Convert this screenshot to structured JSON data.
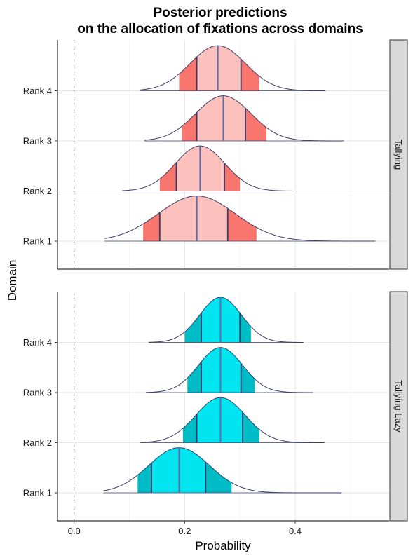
{
  "chart_data": {
    "type": "ridgeline",
    "title_lines": [
      "Posterior predictions",
      "on the allocation of fixations across domains"
    ],
    "xlabel": "Probability",
    "ylabel": "Domain",
    "xlim": [
      -0.03,
      0.57
    ],
    "x_ticks": [
      0.0,
      0.2,
      0.4
    ],
    "x_tick_labels": [
      "0.0",
      "0.2",
      "0.4"
    ],
    "reference_line": 0.0,
    "categories": [
      "Rank 1",
      "Rank 2",
      "Rank 3",
      "Rank 4"
    ],
    "panels": [
      {
        "name": "Tallying",
        "fill_inner": "#fcc1bc",
        "fill_outer": "#f8766d",
        "series": [
          {
            "name": "Rank 1",
            "median": 0.222,
            "sd": 0.07,
            "scale": 0.9,
            "range": [
              0.055,
              0.545
            ],
            "inner": [
              0.155,
              0.278
            ],
            "outer": [
              0.125,
              0.33
            ]
          },
          {
            "name": "Rank 2",
            "median": 0.228,
            "sd": 0.045,
            "scale": 0.9,
            "range": [
              0.087,
              0.398
            ],
            "inner": [
              0.185,
              0.272
            ],
            "outer": [
              0.155,
              0.3
            ]
          },
          {
            "name": "Rank 3",
            "median": 0.27,
            "sd": 0.05,
            "scale": 0.9,
            "range": [
              0.127,
              0.488
            ],
            "inner": [
              0.222,
              0.31
            ],
            "outer": [
              0.195,
              0.348
            ]
          },
          {
            "name": "Rank 4",
            "median": 0.26,
            "sd": 0.05,
            "scale": 0.9,
            "range": [
              0.12,
              0.455
            ],
            "inner": [
              0.222,
              0.302
            ],
            "outer": [
              0.19,
              0.335
            ]
          }
        ]
      },
      {
        "name": "Tallying Lazy",
        "fill_inner": "#00e5ef",
        "fill_outer": "#00bcc6",
        "series": [
          {
            "name": "Rank 1",
            "median": 0.19,
            "sd": 0.055,
            "scale": 0.9,
            "range": [
              0.053,
              0.484
            ],
            "inner": [
              0.14,
              0.238
            ],
            "outer": [
              0.115,
              0.285
            ]
          },
          {
            "name": "Rank 2",
            "median": 0.265,
            "sd": 0.045,
            "scale": 0.9,
            "range": [
              0.12,
              0.453
            ],
            "inner": [
              0.222,
              0.305
            ],
            "outer": [
              0.197,
              0.335
            ]
          },
          {
            "name": "Rank 3",
            "median": 0.265,
            "sd": 0.04,
            "scale": 0.9,
            "range": [
              0.13,
              0.432
            ],
            "inner": [
              0.23,
              0.302
            ],
            "outer": [
              0.205,
              0.327
            ]
          },
          {
            "name": "Rank 4",
            "median": 0.265,
            "sd": 0.038,
            "scale": 0.9,
            "range": [
              0.135,
              0.415
            ],
            "inner": [
              0.23,
              0.3
            ],
            "outer": [
              0.2,
              0.32
            ]
          }
        ]
      }
    ],
    "grid": true
  }
}
